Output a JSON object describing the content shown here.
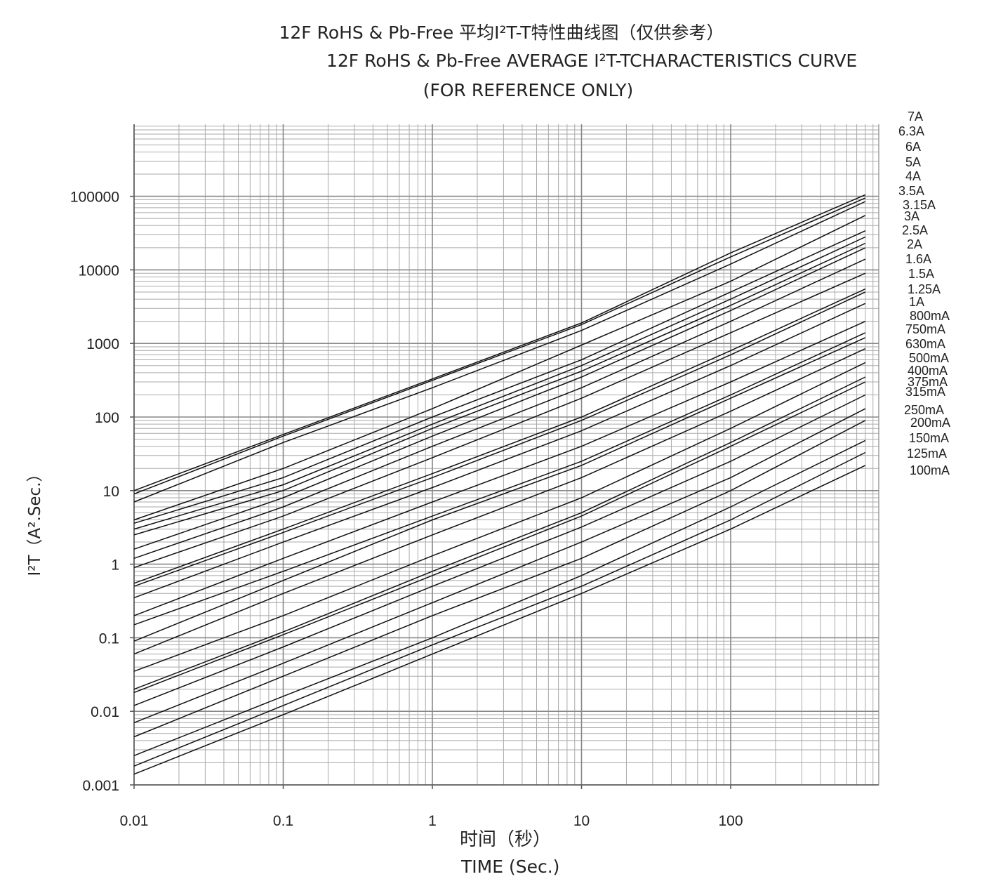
{
  "chart_data": {
    "type": "line",
    "title": "12F RoHS & Pb-Free 平均I²T-T特性曲线图（仅供参考）",
    "subtitle": "12F RoHS & Pb-Free  AVERAGE I²T-TCHARACTERISTICS CURVE",
    "subtitle2": "(FOR REFERENCE ONLY)",
    "xlabel_cn": "时间（秒）",
    "xlabel": "TIME (Sec.)",
    "ylabel": "I²T（A².Sec.）",
    "x_scale": "log",
    "y_scale": "log",
    "xlim": [
      0.01,
      800
    ],
    "ylim": [
      0.001,
      1000000
    ],
    "x_ticks": [
      "0.01",
      "0.1",
      "1",
      "10",
      "100"
    ],
    "y_ticks": [
      "0.001",
      "0.01",
      "0.1",
      "1",
      "10",
      "100",
      "1000",
      "10000",
      "100000"
    ],
    "grid": true,
    "legend": "right",
    "series": [
      {
        "name": "7A",
        "points": [
          [
            0.01,
            10
          ],
          [
            0.1,
            58
          ],
          [
            1,
            330
          ],
          [
            10,
            1900
          ],
          [
            100,
            17000
          ],
          [
            800,
            105000
          ]
        ]
      },
      {
        "name": "6.3A",
        "points": [
          [
            0.01,
            9
          ],
          [
            0.1,
            55
          ],
          [
            1,
            315
          ],
          [
            10,
            1800
          ],
          [
            100,
            15000
          ],
          [
            800,
            95000
          ]
        ]
      },
      {
        "name": "6A",
        "points": [
          [
            0.01,
            7
          ],
          [
            0.1,
            45
          ],
          [
            1,
            250
          ],
          [
            10,
            1500
          ],
          [
            100,
            12000
          ],
          [
            800,
            85000
          ]
        ]
      },
      {
        "name": "5A",
        "points": [
          [
            0.01,
            4
          ],
          [
            0.1,
            20
          ],
          [
            1,
            130
          ],
          [
            10,
            950
          ],
          [
            100,
            7000
          ],
          [
            800,
            55000
          ]
        ]
      },
      {
        "name": "4A",
        "points": [
          [
            0.01,
            3.6
          ],
          [
            0.1,
            15
          ],
          [
            1,
            100
          ],
          [
            10,
            600
          ],
          [
            100,
            5000
          ],
          [
            800,
            34000
          ]
        ]
      },
      {
        "name": "3.5A",
        "points": [
          [
            0.01,
            3
          ],
          [
            0.1,
            12
          ],
          [
            1,
            80
          ],
          [
            10,
            500
          ],
          [
            100,
            4000
          ],
          [
            800,
            28000
          ]
        ]
      },
      {
        "name": "3.15A",
        "points": [
          [
            0.01,
            2.5
          ],
          [
            0.1,
            10
          ],
          [
            1,
            70
          ],
          [
            10,
            420
          ],
          [
            100,
            3300
          ],
          [
            800,
            23000
          ]
        ]
      },
      {
        "name": "3A",
        "points": [
          [
            0.01,
            1.6
          ],
          [
            0.1,
            8
          ],
          [
            1,
            55
          ],
          [
            10,
            350
          ],
          [
            100,
            2800
          ],
          [
            800,
            20000
          ]
        ]
      },
      {
        "name": "2.5A",
        "points": [
          [
            0.01,
            1.2
          ],
          [
            0.1,
            6
          ],
          [
            1,
            40
          ],
          [
            10,
            250
          ],
          [
            100,
            2000
          ],
          [
            800,
            14000
          ]
        ]
      },
      {
        "name": "2A",
        "points": [
          [
            0.01,
            0.9
          ],
          [
            0.1,
            4.5
          ],
          [
            1,
            28
          ],
          [
            10,
            180
          ],
          [
            100,
            1400
          ],
          [
            800,
            9000
          ]
        ]
      },
      {
        "name": "1.6A",
        "points": [
          [
            0.01,
            0.55
          ],
          [
            0.1,
            3
          ],
          [
            1,
            17
          ],
          [
            10,
            100
          ],
          [
            100,
            800
          ],
          [
            800,
            5500
          ]
        ]
      },
      {
        "name": "1.5A",
        "points": [
          [
            0.01,
            0.5
          ],
          [
            0.1,
            2.7
          ],
          [
            1,
            15
          ],
          [
            10,
            90
          ],
          [
            100,
            700
          ],
          [
            800,
            5000
          ]
        ]
      },
      {
        "name": "1.25A",
        "points": [
          [
            0.01,
            0.35
          ],
          [
            0.1,
            2
          ],
          [
            1,
            11
          ],
          [
            10,
            65
          ],
          [
            100,
            500
          ],
          [
            800,
            3500
          ]
        ]
      },
      {
        "name": "1A",
        "points": [
          [
            0.01,
            0.2
          ],
          [
            0.1,
            1.2
          ],
          [
            1,
            7
          ],
          [
            10,
            40
          ],
          [
            100,
            300
          ],
          [
            800,
            2000
          ]
        ]
      },
      {
        "name": "800mA",
        "points": [
          [
            0.01,
            0.15
          ],
          [
            0.1,
            0.8
          ],
          [
            1,
            4.5
          ],
          [
            10,
            25
          ],
          [
            100,
            200
          ],
          [
            800,
            1400
          ]
        ]
      },
      {
        "name": "750mA",
        "points": [
          [
            0.01,
            0.09
          ],
          [
            0.1,
            0.6
          ],
          [
            1,
            4
          ],
          [
            10,
            22
          ],
          [
            100,
            180
          ],
          [
            800,
            1200
          ]
        ]
      },
      {
        "name": "630mA",
        "points": [
          [
            0.01,
            0.06
          ],
          [
            0.1,
            0.4
          ],
          [
            1,
            2.5
          ],
          [
            10,
            15
          ],
          [
            100,
            120
          ],
          [
            800,
            850
          ]
        ]
      },
      {
        "name": "500mA",
        "points": [
          [
            0.01,
            0.035
          ],
          [
            0.1,
            0.2
          ],
          [
            1,
            1.3
          ],
          [
            10,
            8
          ],
          [
            100,
            70
          ],
          [
            800,
            550
          ]
        ]
      },
      {
        "name": "400mA",
        "points": [
          [
            0.01,
            0.02
          ],
          [
            0.1,
            0.12
          ],
          [
            1,
            0.8
          ],
          [
            10,
            5
          ],
          [
            100,
            45
          ],
          [
            800,
            350
          ]
        ]
      },
      {
        "name": "375mA",
        "points": [
          [
            0.01,
            0.018
          ],
          [
            0.1,
            0.11
          ],
          [
            1,
            0.7
          ],
          [
            10,
            4.5
          ],
          [
            100,
            40
          ],
          [
            800,
            300
          ]
        ]
      },
      {
        "name": "315mA",
        "points": [
          [
            0.01,
            0.012
          ],
          [
            0.1,
            0.075
          ],
          [
            1,
            0.5
          ],
          [
            10,
            3.2
          ],
          [
            100,
            25
          ],
          [
            800,
            200
          ]
        ]
      },
      {
        "name": "250mA",
        "points": [
          [
            0.01,
            0.007
          ],
          [
            0.1,
            0.045
          ],
          [
            1,
            0.3
          ],
          [
            10,
            2
          ],
          [
            100,
            15
          ],
          [
            800,
            130
          ]
        ]
      },
      {
        "name": "200mA",
        "points": [
          [
            0.01,
            0.0045
          ],
          [
            0.1,
            0.03
          ],
          [
            1,
            0.2
          ],
          [
            10,
            1.2
          ],
          [
            100,
            10
          ],
          [
            800,
            90
          ]
        ]
      },
      {
        "name": "150mA",
        "points": [
          [
            0.01,
            0.0025
          ],
          [
            0.1,
            0.016
          ],
          [
            1,
            0.1
          ],
          [
            10,
            0.7
          ],
          [
            100,
            6
          ],
          [
            800,
            48
          ]
        ]
      },
      {
        "name": "125mA",
        "points": [
          [
            0.01,
            0.0018
          ],
          [
            0.1,
            0.012
          ],
          [
            1,
            0.08
          ],
          [
            10,
            0.5
          ],
          [
            100,
            4
          ],
          [
            800,
            33
          ]
        ]
      },
      {
        "name": "100mA",
        "points": [
          [
            0.01,
            0.0014
          ],
          [
            0.1,
            0.009
          ],
          [
            1,
            0.06
          ],
          [
            10,
            0.4
          ],
          [
            100,
            3
          ],
          [
            800,
            22
          ]
        ]
      }
    ],
    "legend_labels": [
      "7A",
      "6.3A",
      "6A",
      "5A",
      "4A",
      "3.5A",
      "3.15A",
      "3A",
      "2.5A",
      "2A",
      "1.6A",
      "1.5A",
      "1.25A",
      "1A",
      "800mA",
      "750mA",
      "630mA",
      "500mA",
      "400mA",
      "375mA",
      "315mA",
      "250mA",
      "200mA",
      "150mA",
      "125mA",
      "100mA"
    ]
  }
}
